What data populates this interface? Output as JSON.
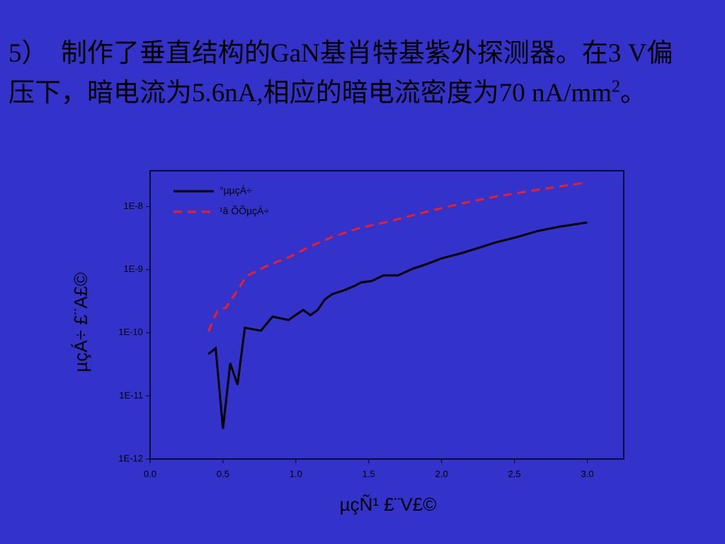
{
  "slide": {
    "text": [
      "5）　制作了垂直结构的GaN基肖特基紫外探测器。在3 V偏压下，暗电流为5.6nA,相应的暗电流密度为70 nA/mm",
      "2",
      "。"
    ]
  },
  "chart_data": {
    "type": "line",
    "x_label": "µçÑ¹ £¨V£©",
    "y_label": "µçÁ÷ £¨A£©",
    "log_y": true,
    "legend": "upper left",
    "xlim": [
      0,
      3.25
    ],
    "ylim": [
      1e-12,
      3.7e-08
    ],
    "xticks": [
      {
        "value": 0,
        "label": "0.0"
      },
      0.5,
      {
        "value": 1,
        "label": "1.0"
      },
      1.5,
      {
        "value": 2,
        "label": "2.0"
      },
      2.5,
      {
        "value": 3,
        "label": "3.0"
      }
    ],
    "yticks": [
      {
        "value": 1e-12,
        "label": "1E-12"
      },
      {
        "value": 1e-11,
        "label": "1E-11"
      },
      {
        "value": 1e-10,
        "label": "1E-10"
      },
      {
        "value": 1e-09,
        "label": "1E-9"
      },
      {
        "value": 1e-08,
        "label": "1E-8"
      }
    ],
    "series": [
      {
        "name": "°µµçÁ÷",
        "color": "#000000",
        "dash": false,
        "x": [
          0.4,
          0.45,
          0.5,
          0.55,
          0.6,
          0.65,
          0.76,
          0.84,
          0.95,
          1.05,
          1.1,
          1.15,
          1.2,
          1.25,
          1.33,
          1.4,
          1.45,
          1.52,
          1.6,
          1.7,
          1.8,
          1.9,
          2.0,
          2.13,
          2.25,
          2.37,
          2.52,
          2.66,
          2.81,
          3.0
        ],
        "values": [
          4.6e-11,
          5.7e-11,
          3e-12,
          3.3e-11,
          1.5e-11,
          1.2e-10,
          1.08e-10,
          1.8e-10,
          1.6e-10,
          2.3e-10,
          1.9e-10,
          2.3e-10,
          3.4e-10,
          4.1e-10,
          4.7e-10,
          5.5e-10,
          6.3e-10,
          6.6e-10,
          8.1e-10,
          8.1e-10,
          1.03e-09,
          1.23e-09,
          1.51e-09,
          1.81e-09,
          2.2e-09,
          2.7e-09,
          3.3e-09,
          4.1e-09,
          4.8e-09,
          5.6e-09
        ]
      },
      {
        "name": "¹â ÕÕµçÁ÷",
        "color": "#e8202a",
        "dash": true,
        "x": [
          0.4,
          0.46,
          0.52,
          0.6,
          0.66,
          0.81,
          0.96,
          1.1,
          1.25,
          1.44,
          1.64,
          1.88,
          2.13,
          2.37,
          2.61,
          2.86,
          3.0
        ],
        "values": [
          1.05e-10,
          2.2e-10,
          2.5e-10,
          4.7e-10,
          7.9e-10,
          1.17e-09,
          1.6e-09,
          2.35e-09,
          3.3e-09,
          4.6e-09,
          5.8e-09,
          8.1e-09,
          1.11e-08,
          1.44e-08,
          1.77e-08,
          2.17e-08,
          2.4e-08
        ]
      }
    ]
  }
}
